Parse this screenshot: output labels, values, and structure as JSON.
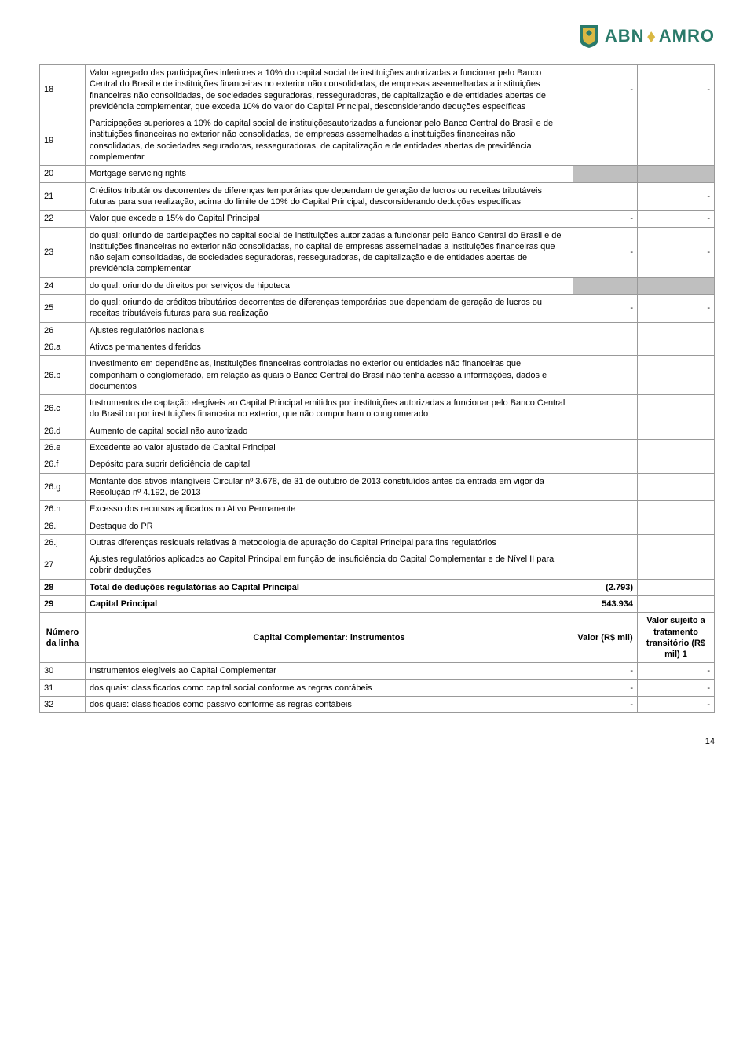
{
  "logo": {
    "text1": "ABN",
    "text2": "AMRO"
  },
  "colors": {
    "brand_green": "#2a7a6a",
    "brand_gold": "#d9b843",
    "grey_fill": "#bfbfbf",
    "border": "#999999"
  },
  "rows": [
    {
      "n": "18",
      "desc": "Valor agregado das participações inferiores a 10% do capital social de instituições autorizadas a funcionar pelo Banco Central do Brasil e de instituições financeiras no exterior não consolidadas, de empresas assemelhadas a instituições financeiras não consolidadas, de sociedades seguradoras, resseguradoras, de capitalização e de entidades abertas de previdência complementar, que exceda 10% do valor do Capital Principal, desconsiderando deduções específicas",
      "v1": "-",
      "v2": "-"
    },
    {
      "n": "19",
      "desc": "Participações superiores a 10% do capital social de instituiçõesautorizadas a funcionar pelo Banco Central do Brasil e de instituições financeiras no exterior não consolidadas, de empresas assemelhadas a instituições financeiras não consolidadas, de sociedades seguradoras, resseguradoras, de capitalização e de entidades abertas de previdência complementar",
      "v1": "",
      "v2": ""
    },
    {
      "n": "20",
      "desc": "Mortgage servicing rights",
      "v1_grey": true,
      "v2_grey": true
    },
    {
      "n": "21",
      "desc": "Créditos tributários decorrentes de diferenças temporárias que dependam de geração de lucros ou receitas tributáveis futuras para sua realização, acima do limite de 10% do Capital Principal, desconsiderando deduções específicas",
      "v1": "",
      "v2": "-"
    },
    {
      "n": "22",
      "desc": "Valor que excede a 15% do Capital Principal",
      "v1": "-",
      "v2": "-"
    },
    {
      "n": "23",
      "desc": "do qual: oriundo de participações no capital social de instituições autorizadas a funcionar pelo Banco Central do Brasil e de instituições financeiras no exterior não consolidadas, no capital de empresas assemelhadas a instituições financeiras que não sejam consolidadas, de sociedades seguradoras, resseguradoras, de capitalização e de entidades abertas de previdência complementar",
      "v1": "-",
      "v2": "-"
    },
    {
      "n": "24",
      "desc": "do qual: oriundo de direitos por serviços de hipoteca",
      "v1_grey": true,
      "v2_grey": true
    },
    {
      "n": "25",
      "desc": "do qual: oriundo de créditos tributários decorrentes de diferenças temporárias que dependam de geração de lucros ou receitas tributáveis futuras para sua realização",
      "v1": "-",
      "v2": "-"
    },
    {
      "n": "26",
      "desc": "Ajustes regulatórios nacionais",
      "v1": "",
      "v2": ""
    },
    {
      "n": "26.a",
      "desc": "Ativos permanentes diferidos",
      "v1": "",
      "v2": ""
    },
    {
      "n": "26.b",
      "desc": "Investimento em dependências, instituições financeiras controladas no exterior ou entidades não financeiras que componham o conglomerado, em relação às quais o Banco Central do Brasil não tenha acesso a informações, dados e documentos",
      "v1": "",
      "v2": ""
    },
    {
      "n": "26.c",
      "desc": "Instrumentos de captação elegíveis ao Capital Principal emitidos por instituições autorizadas a funcionar pelo Banco Central do Brasil ou por instituições financeira no exterior, que não componham o conglomerado",
      "v1": "",
      "v2": ""
    },
    {
      "n": "26.d",
      "desc": "Aumento de capital social não autorizado",
      "v1": "",
      "v2": ""
    },
    {
      "n": "26.e",
      "desc": "Excedente ao valor ajustado de Capital Principal",
      "v1": "",
      "v2": ""
    },
    {
      "n": "26.f",
      "desc": "Depósito para suprir deficiência de capital",
      "v1": "",
      "v2": ""
    },
    {
      "n": "26.g",
      "desc": "Montante dos ativos intangíveis Circular nº 3.678, de 31 de outubro de 2013 constituídos antes da entrada em vigor da Resolução nº 4.192, de 2013",
      "v1": "",
      "v2": ""
    },
    {
      "n": "26.h",
      "desc": "Excesso dos recursos aplicados no Ativo Permanente",
      "v1": "",
      "v2": ""
    },
    {
      "n": "26.i",
      "desc": "Destaque do PR",
      "v1": "",
      "v2": ""
    },
    {
      "n": "26.j",
      "desc": "Outras diferenças residuais relativas à metodologia de apuração do Capital Principal para fins regulatórios",
      "v1": "",
      "v2": ""
    },
    {
      "n": "27",
      "desc": "Ajustes regulatórios aplicados ao Capital Principal em função de insuficiência do Capital Complementar e de Nível II para cobrir deduções",
      "v1": "",
      "v2": ""
    },
    {
      "n": "28",
      "desc": "Total de deduções regulatórias ao Capital Principal",
      "v1": "(2.793)",
      "v2": "",
      "bold": true
    },
    {
      "n": "29",
      "desc": "Capital Principal",
      "v1": "543.934",
      "v2": "",
      "bold": true
    }
  ],
  "section_header": {
    "c1": "Número da linha",
    "c2": "Capital Complementar: instrumentos",
    "c3": "Valor (R$ mil)",
    "c4": "Valor sujeito a tratamento transitório (R$ mil) 1"
  },
  "rows2": [
    {
      "n": "30",
      "desc": "Instrumentos elegíveis ao Capital Complementar",
      "v1": "-",
      "v2": "-"
    },
    {
      "n": "31",
      "desc": "dos quais: classificados como capital social conforme as regras contábeis",
      "v1": "-",
      "v2": "-"
    },
    {
      "n": "32",
      "desc": "dos quais: classificados como passivo conforme as regras contábeis",
      "v1": "-",
      "v2": "-"
    }
  ],
  "page_number": "14"
}
